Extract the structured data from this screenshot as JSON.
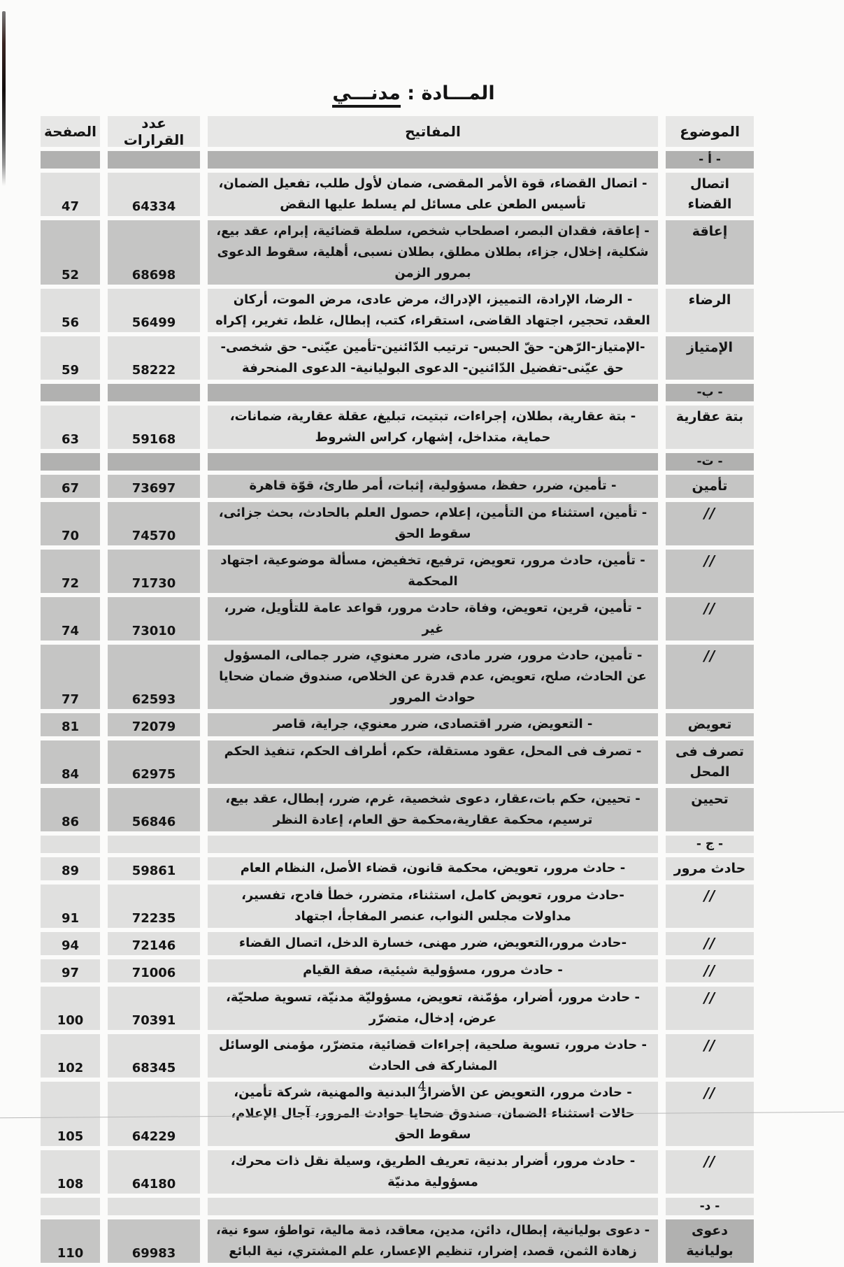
{
  "title": {
    "prefix": "المـــادة :",
    "word": "مدنـــي"
  },
  "headers": {
    "subject": "الموضوع",
    "keys": "المفاتيح",
    "decisions": "عدد القرارات",
    "page": "الصفحة"
  },
  "footer": {
    "page_number": "4"
  },
  "colors": {
    "row_light": "#e0e0df",
    "row_mid": "#c5c5c4",
    "row_dark": "#b1b1b0",
    "header_bg": "#e7e7e6",
    "text": "#141414"
  },
  "rows": [
    {
      "type": "section",
      "label": "- أ -",
      "shade": "dark"
    },
    {
      "type": "entry",
      "subject": "اتصال القضاء",
      "keys": "- اتصال القضاء، قوة الأمر المقضى، ضمان لأول طلب، تفعيل الضمان، تأسيس الطعن على مسائل لم يسلط عليها النقض",
      "decisions": "64334",
      "page": "47",
      "shade": "light"
    },
    {
      "type": "entry",
      "subject": "إعاقة",
      "keys": "- إعاقة، فقدان البصر، اصطحاب شخص، سلطة قضائية، إبرام، عقد بيع، شكلية، إخلال، جزاء، بطلان مطلق، بطلان نسبى، أهلية، سقوط الدعوى بمرور الزمن",
      "decisions": "68698",
      "page": "52",
      "shade": "mid"
    },
    {
      "type": "entry",
      "subject": "الرضاء",
      "keys": "- الرضا، الإرادة، التمييز، الإدراك، مرض عادى، مرض الموت، أركان العقد، تحجير، اجتهاد القاضى، استقراء، كتب، إبطال، غلط، تغرير، إكراه",
      "decisions": "56499",
      "page": "56",
      "shade": "light"
    },
    {
      "type": "entry",
      "subject": "الإمتياز",
      "keys": "-الإمتياز-الرّهن- حقّ الحبس- ترتيب الدّائنين-تأمين عيّنى- حق شخصى- حق عيّنى-تفضيل الدّائنين- الدعوى البوليانية- الدعوى المنحرفة",
      "decisions": "58222",
      "page": "59",
      "shade": "light",
      "subject_shade": "mid"
    },
    {
      "type": "section",
      "label": "- ب-",
      "shade": "dark"
    },
    {
      "type": "entry",
      "subject": "بتة عقارية",
      "keys": "- بتة عقارية، بطلان، إجراءات، تبتيت، تبليغ، عقلة عقارية، ضمانات، حماية، متداخل، إشهار، كراس الشروط",
      "decisions": "59168",
      "page": "63",
      "shade": "light"
    },
    {
      "type": "section",
      "label": "- ت-",
      "shade": "dark"
    },
    {
      "type": "entry",
      "subject": "تأمين",
      "keys": "- تأمين، ضرر، حفظ، مسؤولية، إثبات، أمر طارئ، قوّة قاهرة",
      "decisions": "73697",
      "page": "67",
      "shade": "mid"
    },
    {
      "type": "entry",
      "subject": "//",
      "slashes": true,
      "keys": "- تأمين، استثناء من التأمين، إعلام، حصول العلم بالحادث، بحث جزائى، سقوط الحق",
      "decisions": "74570",
      "page": "70",
      "shade": "mid"
    },
    {
      "type": "entry",
      "subject": "//",
      "slashes": true,
      "keys": "- تأمين، حادث مرور، تعويض، ترفيع، تخفيض، مسألة موضوعية، اجتهاد المحكمة",
      "decisions": "71730",
      "page": "72",
      "shade": "mid"
    },
    {
      "type": "entry",
      "subject": "//",
      "slashes": true,
      "keys": "- تأمين، قرين، تعويض، وفاة، حادث مرور، قواعد عامة للتأويل، ضرر، غير",
      "decisions": "73010",
      "page": "74",
      "shade": "mid"
    },
    {
      "type": "entry",
      "subject": "//",
      "slashes": true,
      "keys": "- تأمين، حادث مرور، ضرر مادى، ضرر معنوي، ضرر جمالى، المسؤول عن الحادث، صلح، تعويض، عدم قدرة عن الخلاص، صندوق ضمان ضحايا حوادث المرور",
      "decisions": "62593",
      "page": "77",
      "shade": "mid"
    },
    {
      "type": "entry",
      "subject": "تعويض",
      "keys": "- التعويض، ضرر اقتصادى، ضرر معنوي، جراية، قاصر",
      "decisions": "72079",
      "page": "81",
      "shade": "mid"
    },
    {
      "type": "entry",
      "subject": "تصرف فى المحل",
      "keys": "- تصرف فى المحل، عقود مستقلة، حكم، أطراف الحكم، تنفيذ الحكم",
      "decisions": "62975",
      "page": "84",
      "shade": "mid"
    },
    {
      "type": "entry",
      "subject": "تحيين",
      "keys": "- تحيين، حكم بات،عقار، دعوى شخصية، غرم، ضرر، إبطال، عقد بيع، ترسيم، محكمة عقارية،محكمة حق العام، إعادة النظر",
      "decisions": "56846",
      "page": "86",
      "shade": "mid"
    },
    {
      "type": "section",
      "label": "- ج -",
      "shade": "light"
    },
    {
      "type": "entry",
      "subject": "حادث مرور",
      "keys": "- حادث مرور، تعويض، محكمة قانون، قضاء الأصل، النظام العام",
      "decisions": "59861",
      "page": "89",
      "shade": "light"
    },
    {
      "type": "entry",
      "subject": "//",
      "slashes": true,
      "keys": "-حادث مرور، تعويض كامل، استثناء، متضرر، خطأ فادح، تفسير، مداولات مجلس النواب، عنصر المفاجأ، اجتهاد",
      "decisions": "72235",
      "page": "91",
      "shade": "light"
    },
    {
      "type": "entry",
      "subject": "//",
      "slashes": true,
      "keys": "-حادث مرور،التعويض، ضرر مهنى، خسارة الدخل، اتصال القضاء",
      "decisions": "72146",
      "page": "94",
      "shade": "light"
    },
    {
      "type": "entry",
      "subject": "//",
      "slashes": true,
      "keys": "- حادث مرور، مسؤولية شيئية، صفة القيام",
      "decisions": "71006",
      "page": "97",
      "shade": "light"
    },
    {
      "type": "entry",
      "subject": "//",
      "slashes": true,
      "keys": "- حادث مرور، أضرار، مؤمّنة، تعويض، مسؤوليّة مدنيّة، تسوية صلحيّة، عرض، إدخال، متضرّر",
      "decisions": "70391",
      "page": "100",
      "shade": "light"
    },
    {
      "type": "entry",
      "subject": "//",
      "slashes": true,
      "keys": "- حادث مرور، تسوية صلحية، إجراءات قضائية، متضرّر، مؤمنى الوسائل المشاركة فى الحادث",
      "decisions": "68345",
      "page": "102",
      "shade": "light"
    },
    {
      "type": "entry",
      "subject": "//",
      "slashes": true,
      "keys": "- حادث مرور، التعويض عن الأضرار البدنية والمهنية، شركة تأمين، حالات استثناء الضمان، صندوق ضحايا حوادث المرور، آجال الإعلام، سقوط الحق",
      "decisions": "64229",
      "page": "105",
      "shade": "light"
    },
    {
      "type": "entry",
      "subject": "//",
      "slashes": true,
      "keys": "- حادث مرور، أضرار بدنية، تعريف الطريق، وسيلة نقل ذات محرك، مسؤولية مدنيّة",
      "decisions": "64180",
      "page": "108",
      "shade": "light"
    },
    {
      "type": "section",
      "label": "- د-",
      "shade": "light"
    },
    {
      "type": "entry",
      "subject": "دعوى بوليانية",
      "keys": "- دعوى بوليانية، إبطال، دائن، مدين، معاقد، ذمة مالية، تواطؤ، سوء نية، زهادة الثمن، قصد، إضرار، تنظيم الإعسار، علم المشتري، نية البائع",
      "decisions": "69983",
      "page": "110",
      "shade": "mid",
      "subject_shade": "dark"
    }
  ]
}
